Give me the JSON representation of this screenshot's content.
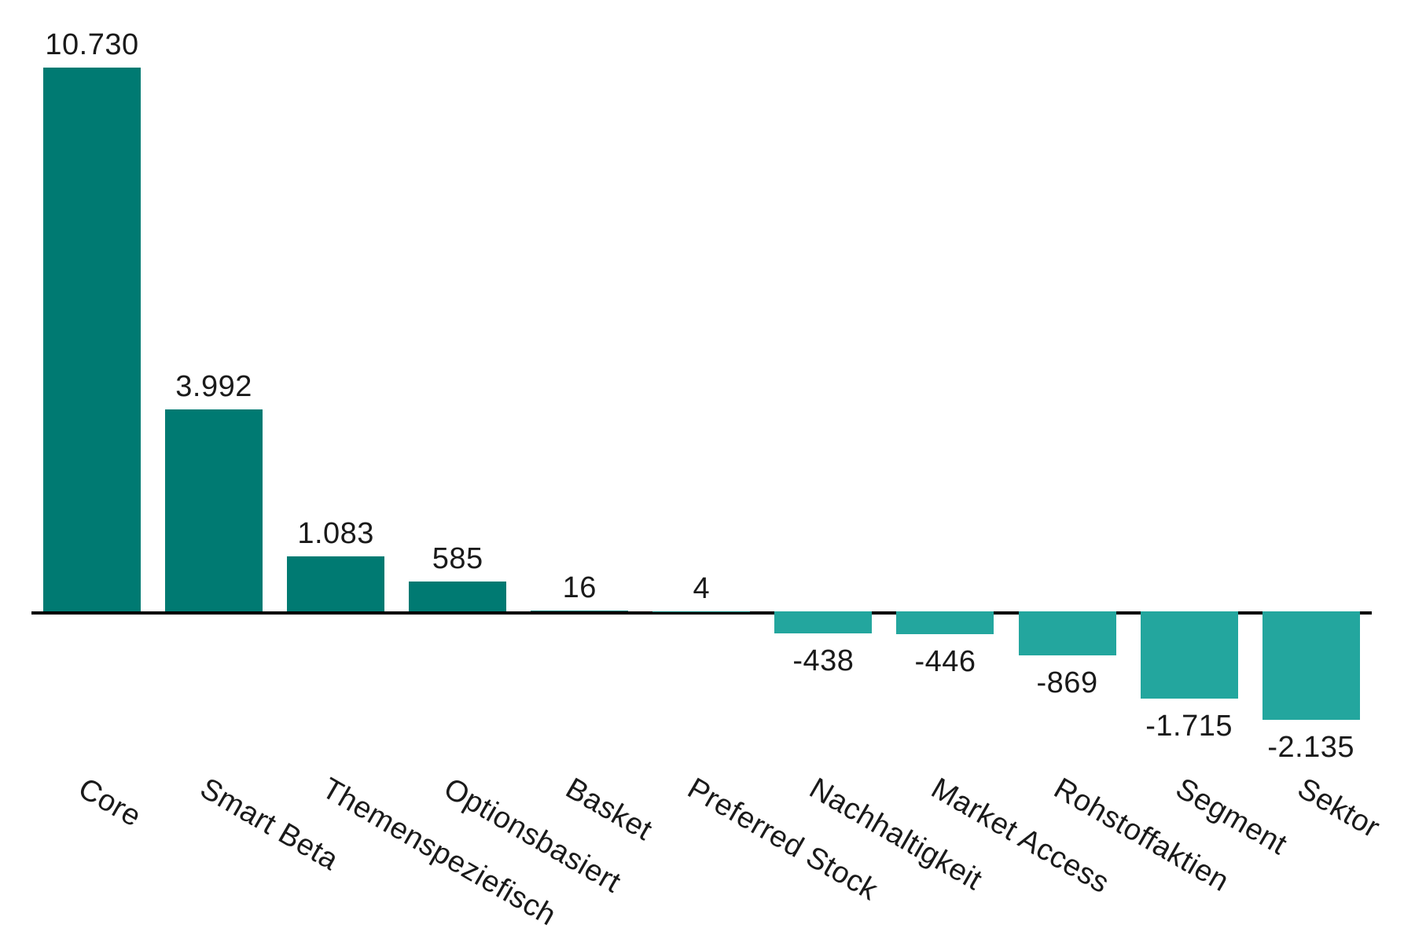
{
  "chart_data": {
    "type": "bar",
    "title": "",
    "xlabel": "",
    "ylabel": "",
    "categories": [
      "Core",
      "Smart Beta",
      "Themenspeziefisch",
      "Optionsbasiert",
      "Basket",
      "Preferred Stock",
      "Nachhaltigkeit",
      "Market Access",
      "Rohstoffaktien",
      "Segment",
      "Sektor"
    ],
    "values": [
      10730,
      3992,
      1083,
      585,
      16,
      4,
      -438,
      -446,
      -869,
      -1715,
      -2135
    ],
    "value_labels": [
      "10.730",
      "3.992",
      "1.083",
      "585",
      "16",
      "4",
      "-438",
      "-446",
      "-869",
      "-1.715",
      "-2.135"
    ],
    "ylim": [
      -2500,
      11000
    ],
    "grid": false,
    "legend": "none",
    "x_label_rotation_deg": 30,
    "colors": {
      "bar_positive": "#007A72",
      "bar_negative": "#23A69E",
      "axis_line": "#000000",
      "text": "#1A1A1A"
    }
  }
}
